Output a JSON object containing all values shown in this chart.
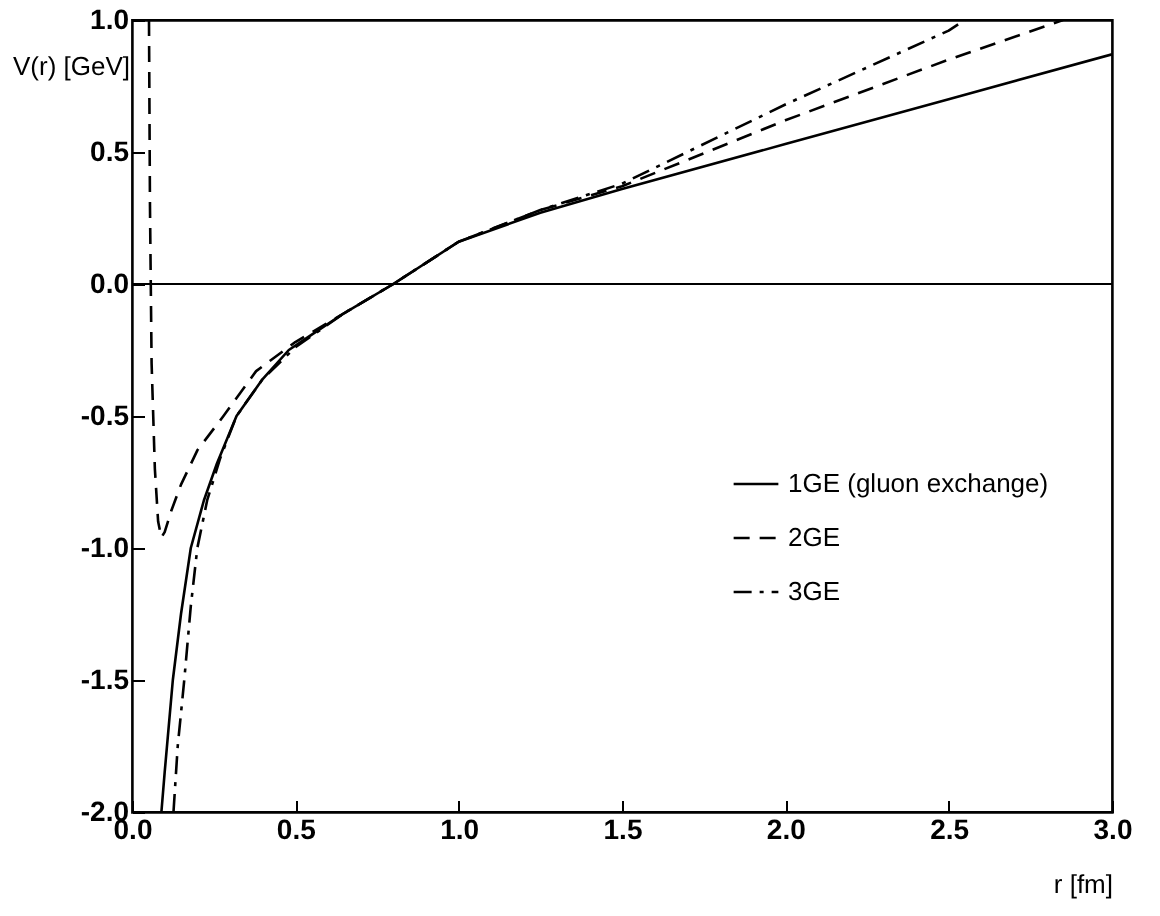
{
  "chart_data": {
    "type": "line",
    "xlabel": "r [fm]",
    "ylabel": "V(r) [GeV]",
    "xlim": [
      0,
      3
    ],
    "ylim": [
      -2,
      1
    ],
    "xticks": [
      {
        "value": 0,
        "label": "0.0"
      },
      {
        "value": 0.5,
        "label": "0.5"
      },
      {
        "value": 1,
        "label": "1.0"
      },
      {
        "value": 1.5,
        "label": "1.5"
      },
      {
        "value": 2,
        "label": "2.0"
      },
      {
        "value": 2.5,
        "label": "2.5"
      },
      {
        "value": 3,
        "label": "3.0"
      }
    ],
    "yticks": [
      {
        "value": -2,
        "label": "-2.0"
      },
      {
        "value": -1.5,
        "label": "-1.5"
      },
      {
        "value": -1,
        "label": "-1.0"
      },
      {
        "value": -0.5,
        "label": "-0.5"
      },
      {
        "value": 0,
        "label": "0.0"
      },
      {
        "value": 0.5,
        "label": "0.5"
      },
      {
        "value": 1,
        "label": "1.0"
      }
    ],
    "grid": false,
    "legend": "right",
    "marker": "none",
    "ref_lines": [
      {
        "axis": "y",
        "value": 0,
        "color": "#000000",
        "line_style": "solid"
      }
    ],
    "series": [
      {
        "name": "1GE (gluon exchange)",
        "color": "#000000",
        "line_style": "solid",
        "x": [
          0.09,
          0.1,
          0.125,
          0.15,
          0.18,
          0.22,
          0.26,
          0.32,
          0.4,
          0.48,
          0.54,
          0.65,
          0.8,
          1.0,
          1.25,
          1.5,
          2.0,
          2.5,
          3.0
        ],
        "values": [
          -2.0,
          -1.85,
          -1.5,
          -1.25,
          -1.0,
          -0.82,
          -0.68,
          -0.5,
          -0.36,
          -0.25,
          -0.2,
          -0.11,
          0.0,
          0.16,
          0.27,
          0.36,
          0.53,
          0.7,
          0.87
        ]
      },
      {
        "name": "2GE",
        "color": "#000000",
        "line_style": "dashed",
        "x": [
          0.052,
          0.055,
          0.06,
          0.07,
          0.08,
          0.09,
          0.1,
          0.12,
          0.15,
          0.2,
          0.28,
          0.38,
          0.5,
          0.65,
          0.8,
          1.0,
          1.25,
          1.5,
          2.0,
          2.5,
          2.85
        ],
        "values": [
          1.0,
          0.3,
          -0.3,
          -0.7,
          -0.9,
          -0.96,
          -0.94,
          -0.86,
          -0.76,
          -0.63,
          -0.5,
          -0.33,
          -0.22,
          -0.11,
          0.0,
          0.16,
          0.28,
          0.37,
          0.62,
          0.85,
          1.0
        ]
      },
      {
        "name": "3GE",
        "color": "#000000",
        "line_style": "dashdot",
        "x": [
          0.127,
          0.14,
          0.16,
          0.18,
          0.2,
          0.23,
          0.27,
          0.32,
          0.4,
          0.5,
          0.65,
          0.8,
          1.0,
          1.25,
          1.5,
          2.0,
          2.5,
          2.55
        ],
        "values": [
          -2.0,
          -1.75,
          -1.5,
          -1.22,
          -1.0,
          -0.82,
          -0.66,
          -0.5,
          -0.36,
          -0.24,
          -0.11,
          0.0,
          0.16,
          0.28,
          0.38,
          0.68,
          0.96,
          1.0
        ]
      }
    ]
  }
}
